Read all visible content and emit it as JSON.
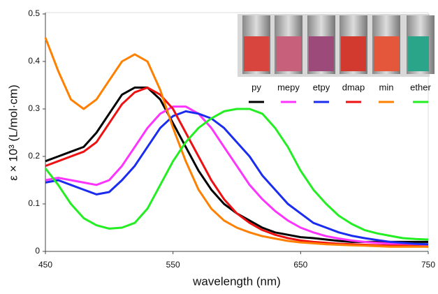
{
  "chart_data": {
    "type": "line",
    "x_label": "wavelength (nm)",
    "y_label": "ε × 10³ (L/mol·cm)",
    "x": [
      450,
      460,
      470,
      480,
      490,
      500,
      510,
      520,
      530,
      540,
      550,
      560,
      570,
      580,
      590,
      600,
      610,
      620,
      630,
      640,
      650,
      660,
      670,
      680,
      690,
      700,
      710,
      720,
      730,
      740,
      750
    ],
    "xlim": [
      450,
      750
    ],
    "xticks": [
      450,
      550,
      650,
      750
    ],
    "ylim": [
      0,
      0.5
    ],
    "yticks": [
      0,
      0.1,
      0.2,
      0.3,
      0.4,
      0.5
    ],
    "grid": false,
    "legend": "upper right",
    "series": [
      {
        "name": "py",
        "color": "#000000",
        "values": [
          0.19,
          0.2,
          0.21,
          0.22,
          0.25,
          0.29,
          0.33,
          0.345,
          0.345,
          0.32,
          0.27,
          0.22,
          0.17,
          0.13,
          0.1,
          0.08,
          0.065,
          0.05,
          0.04,
          0.035,
          0.03,
          0.028,
          0.025,
          0.022,
          0.02,
          0.02,
          0.02,
          0.02,
          0.02,
          0.02,
          0.02
        ]
      },
      {
        "name": "mepy",
        "color": "#ff33ff",
        "values": [
          0.15,
          0.155,
          0.15,
          0.145,
          0.14,
          0.15,
          0.18,
          0.22,
          0.26,
          0.29,
          0.305,
          0.305,
          0.29,
          0.26,
          0.22,
          0.18,
          0.14,
          0.11,
          0.085,
          0.065,
          0.05,
          0.04,
          0.032,
          0.027,
          0.023,
          0.02,
          0.018,
          0.016,
          0.015,
          0.014,
          0.013
        ]
      },
      {
        "name": "etpy",
        "color": "#1a2cf0",
        "values": [
          0.145,
          0.15,
          0.14,
          0.13,
          0.12,
          0.125,
          0.15,
          0.18,
          0.22,
          0.26,
          0.285,
          0.295,
          0.29,
          0.28,
          0.26,
          0.23,
          0.2,
          0.16,
          0.13,
          0.1,
          0.08,
          0.06,
          0.05,
          0.04,
          0.033,
          0.028,
          0.024,
          0.02,
          0.018,
          0.016,
          0.015
        ]
      },
      {
        "name": "dmap",
        "color": "#ee1111",
        "values": [
          0.18,
          0.19,
          0.2,
          0.21,
          0.23,
          0.27,
          0.31,
          0.335,
          0.345,
          0.33,
          0.3,
          0.25,
          0.2,
          0.15,
          0.11,
          0.08,
          0.06,
          0.045,
          0.035,
          0.028,
          0.023,
          0.02,
          0.018,
          0.016,
          0.015,
          0.014,
          0.013,
          0.012,
          0.012,
          0.011,
          0.01
        ]
      },
      {
        "name": "min",
        "color": "#ff8000",
        "values": [
          0.45,
          0.38,
          0.32,
          0.3,
          0.32,
          0.36,
          0.4,
          0.415,
          0.4,
          0.34,
          0.26,
          0.19,
          0.13,
          0.09,
          0.065,
          0.05,
          0.04,
          0.032,
          0.027,
          0.022,
          0.019,
          0.017,
          0.015,
          0.014,
          0.013,
          0.012,
          0.011,
          0.01,
          0.01,
          0.01,
          0.01
        ]
      },
      {
        "name": "ether",
        "color": "#22ee22",
        "values": [
          0.175,
          0.14,
          0.1,
          0.07,
          0.055,
          0.048,
          0.05,
          0.06,
          0.09,
          0.14,
          0.19,
          0.23,
          0.26,
          0.28,
          0.295,
          0.3,
          0.3,
          0.29,
          0.26,
          0.22,
          0.17,
          0.13,
          0.1,
          0.075,
          0.058,
          0.045,
          0.038,
          0.033,
          0.028,
          0.026,
          0.025
        ]
      }
    ]
  }
}
